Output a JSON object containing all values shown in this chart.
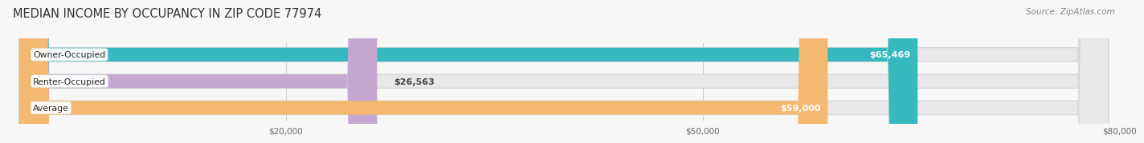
{
  "title": "MEDIAN INCOME BY OCCUPANCY IN ZIP CODE 77974",
  "source": "Source: ZipAtlas.com",
  "categories": [
    "Owner-Occupied",
    "Renter-Occupied",
    "Average"
  ],
  "values": [
    65469,
    26563,
    59000
  ],
  "bar_colors": [
    "#35b8be",
    "#c4a8d0",
    "#f5b870"
  ],
  "bar_labels": [
    "$65,469",
    "$26,563",
    "$59,000"
  ],
  "label_colors": [
    "#ffffff",
    "#555555",
    "#ffffff"
  ],
  "xmin": 0,
  "xmax": 80000,
  "xticks": [
    20000,
    50000,
    80000
  ],
  "xtick_labels": [
    "$20,000",
    "$50,000",
    "$80,000"
  ],
  "background_color": "#f7f7f7",
  "bar_bg_color": "#e8e8ea",
  "bar_bg_edge_color": "#d8d8da",
  "title_fontsize": 10.5,
  "source_fontsize": 7.5,
  "bar_height": 0.52,
  "label_inside_threshold": 40000
}
